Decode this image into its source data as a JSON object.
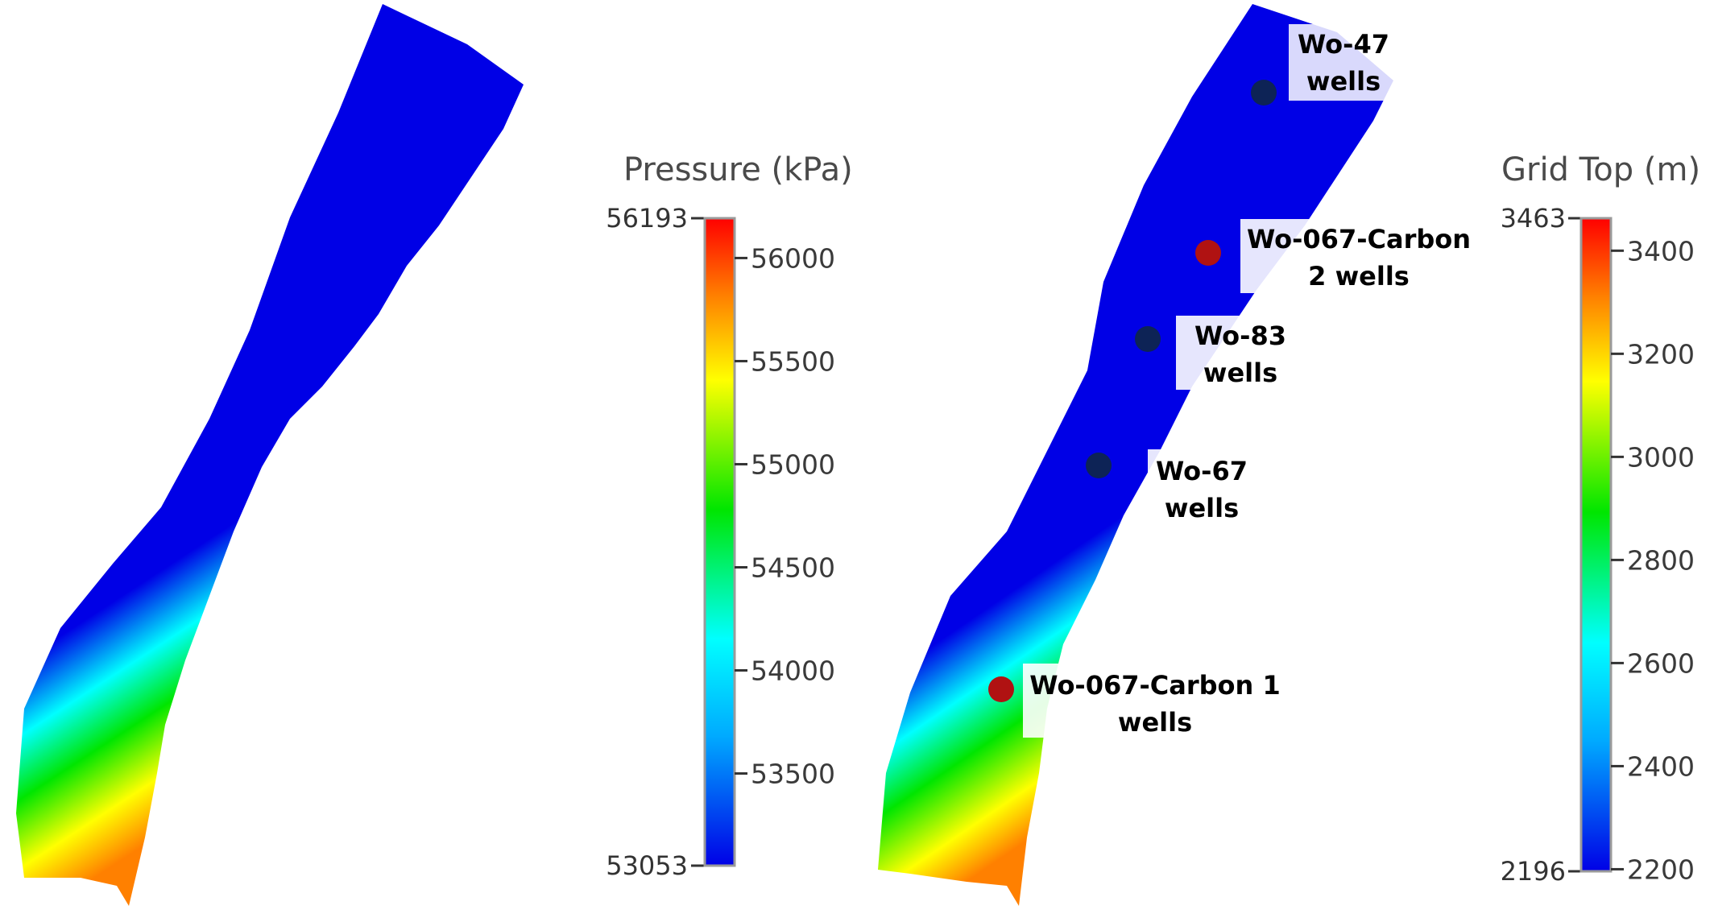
{
  "left_panel": {
    "colorbar": {
      "title": "Pressure (kPa)",
      "min_label": "53053",
      "max_label": "56193",
      "ticks": [
        "56000",
        "55500",
        "55000",
        "54500",
        "54000",
        "53500"
      ]
    }
  },
  "right_panel": {
    "colorbar": {
      "title": "Grid Top (m)",
      "min_label": "2196",
      "max_label": "3463",
      "ticks": [
        "3400",
        "3200",
        "3000",
        "2800",
        "2600",
        "2400",
        "2200"
      ]
    },
    "wells": [
      {
        "name": "wo47",
        "line1": "Wo-47",
        "line2": "wells",
        "color": "#0d2356"
      },
      {
        "name": "wo067-carbon2",
        "line1": "Wo-067-Carbon",
        "line2": "2 wells",
        "color": "#b01212"
      },
      {
        "name": "wo83",
        "line1": "Wo-83",
        "line2": "wells",
        "color": "#0d2356"
      },
      {
        "name": "wo67",
        "line1": "Wo-67",
        "line2": "wells",
        "color": "#0d2356"
      },
      {
        "name": "wo067-carbon1",
        "line1": "Wo-067-Carbon 1",
        "line2": "wells",
        "color": "#b01212"
      }
    ]
  },
  "colormap": [
    "#0000e6",
    "#00ffff",
    "#00e600",
    "#ffff00",
    "#ff8000",
    "#ff0000"
  ]
}
